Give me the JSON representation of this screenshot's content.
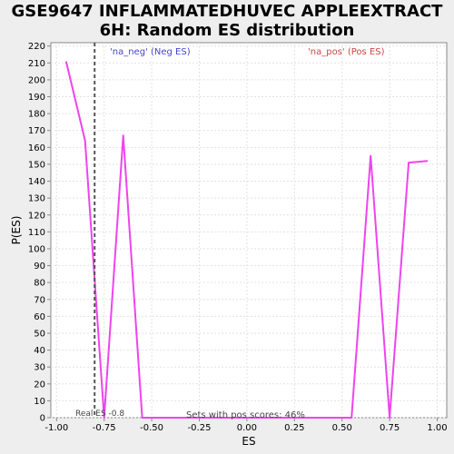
{
  "chart_data": {
    "type": "line",
    "title_lines": [
      "GSE9647 INFLAMMATEDHUVEC APPLEEXTRACT",
      "6H: Random ES distribution"
    ],
    "xlabel": "ES",
    "ylabel": "P(ES)",
    "xlim": [
      -1.03,
      1.05
    ],
    "ylim": [
      0,
      222
    ],
    "x_ticks": [
      -1.0,
      -0.75,
      -0.5,
      -0.25,
      0.0,
      0.25,
      0.5,
      0.75,
      1.0
    ],
    "x_tick_labels": [
      "-1.00",
      "-0.75",
      "-0.50",
      "-0.25",
      "0.00",
      "0.25",
      "0.50",
      "0.75",
      "1.00"
    ],
    "y_ticks": [
      0,
      10,
      20,
      30,
      40,
      50,
      60,
      70,
      80,
      90,
      100,
      110,
      120,
      130,
      140,
      150,
      160,
      170,
      180,
      190,
      200,
      210,
      220
    ],
    "grid": true,
    "series": [
      {
        "color": "#ee44ee",
        "x": [
          -0.95,
          -0.85,
          -0.75,
          -0.65,
          -0.55,
          -0.45,
          -0.35,
          -0.25,
          -0.15,
          -0.05,
          0.05,
          0.15,
          0.25,
          0.35,
          0.45,
          0.55,
          0.65,
          0.75,
          0.85,
          0.95
        ],
        "y": [
          211,
          164,
          0,
          167,
          0,
          0,
          0,
          0,
          0,
          0,
          0,
          0,
          0,
          0,
          0,
          0,
          155,
          0,
          151,
          152
        ]
      }
    ],
    "real_es": {
      "x": -0.8,
      "label": "Real ES -0.8",
      "color": "#555555"
    },
    "annotations": {
      "neg": {
        "text": "'na_neg' (Neg ES)",
        "color": "#4444cc"
      },
      "pos": {
        "text": "'na_pos' (Pos ES)",
        "color": "#cc4444"
      },
      "scores": {
        "text": "Sets with pos scores: 46%",
        "color": "#444444"
      }
    },
    "colors": {
      "plot_bg": "#ffffff",
      "grid": "#e2e2e2",
      "axis": "#888888"
    }
  }
}
